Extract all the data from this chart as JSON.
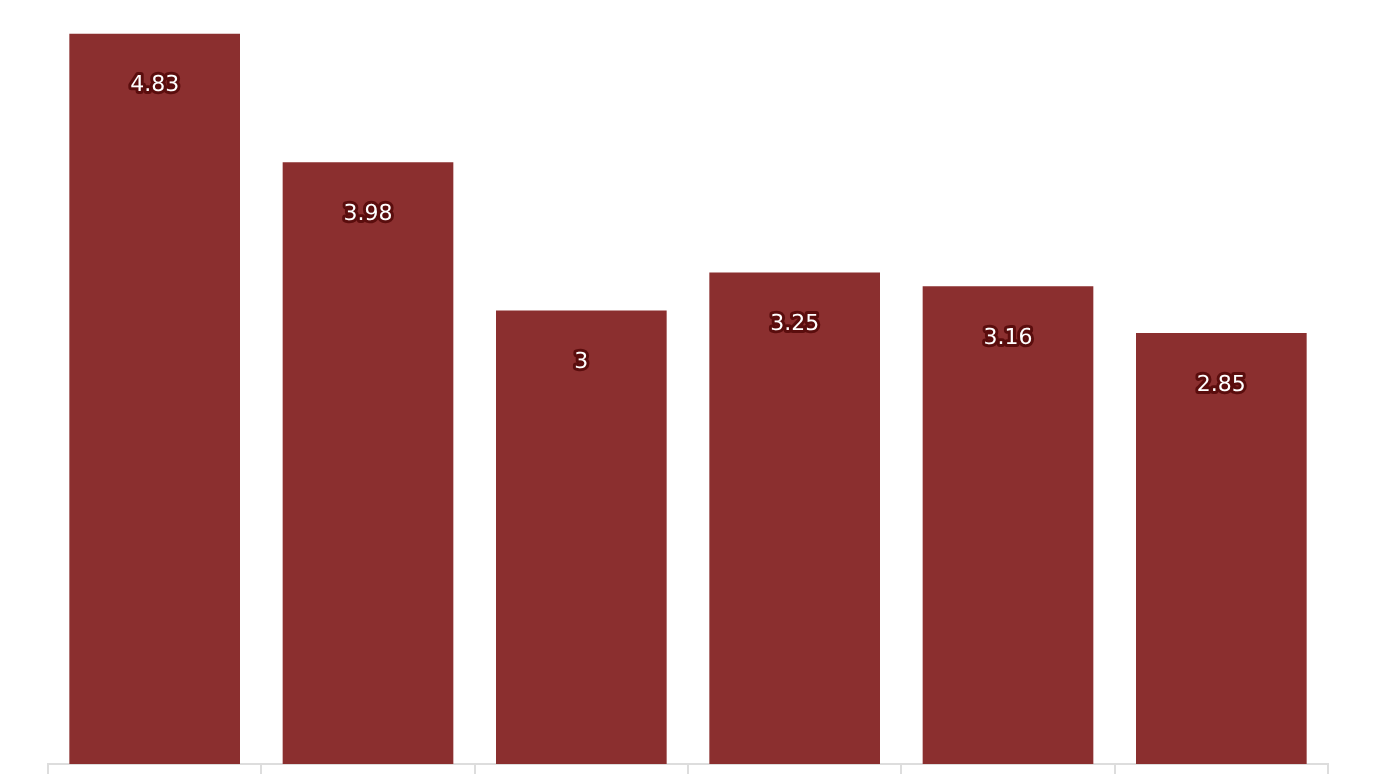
{
  "chart_data": {
    "type": "bar",
    "categories": [
      null,
      null,
      null,
      null,
      null,
      null
    ],
    "values": [
      4.83,
      3.98,
      3,
      3.25,
      3.16,
      2.85
    ],
    "color": "#8b2f2f",
    "data_labels": true
  }
}
